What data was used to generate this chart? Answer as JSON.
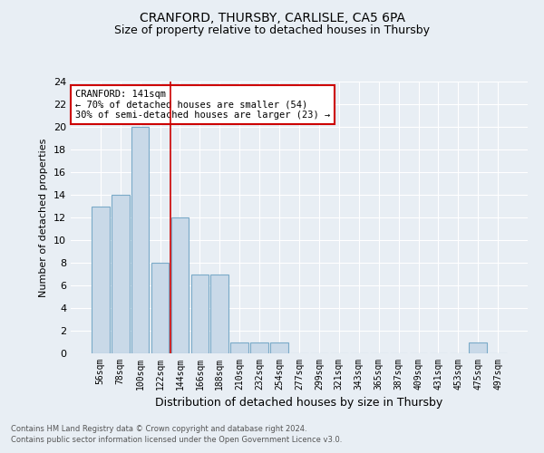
{
  "title": "CRANFORD, THURSBY, CARLISLE, CA5 6PA",
  "subtitle": "Size of property relative to detached houses in Thursby",
  "xlabel": "Distribution of detached houses by size in Thursby",
  "ylabel": "Number of detached properties",
  "footnote1": "Contains HM Land Registry data © Crown copyright and database right 2024.",
  "footnote2": "Contains public sector information licensed under the Open Government Licence v3.0.",
  "bin_labels": [
    "56sqm",
    "78sqm",
    "100sqm",
    "122sqm",
    "144sqm",
    "166sqm",
    "188sqm",
    "210sqm",
    "232sqm",
    "254sqm",
    "277sqm",
    "299sqm",
    "321sqm",
    "343sqm",
    "365sqm",
    "387sqm",
    "409sqm",
    "431sqm",
    "453sqm",
    "475sqm",
    "497sqm"
  ],
  "bar_values": [
    13,
    14,
    20,
    8,
    12,
    7,
    7,
    1,
    1,
    1,
    0,
    0,
    0,
    0,
    0,
    0,
    0,
    0,
    0,
    1,
    0
  ],
  "bar_color": "#c9d9e8",
  "bar_edge_color": "#7aaac8",
  "vline_color": "#cc0000",
  "vline_pos": 3.5,
  "annotation_title": "CRANFORD: 141sqm",
  "annotation_line1": "← 70% of detached houses are smaller (54)",
  "annotation_line2": "30% of semi-detached houses are larger (23) →",
  "annotation_box_color": "#ffffff",
  "annotation_box_edge": "#cc0000",
  "ylim": [
    0,
    24
  ],
  "yticks": [
    0,
    2,
    4,
    6,
    8,
    10,
    12,
    14,
    16,
    18,
    20,
    22,
    24
  ],
  "background_color": "#e8eef4",
  "grid_color": "#ffffff",
  "title_fontsize": 10,
  "subtitle_fontsize": 9
}
